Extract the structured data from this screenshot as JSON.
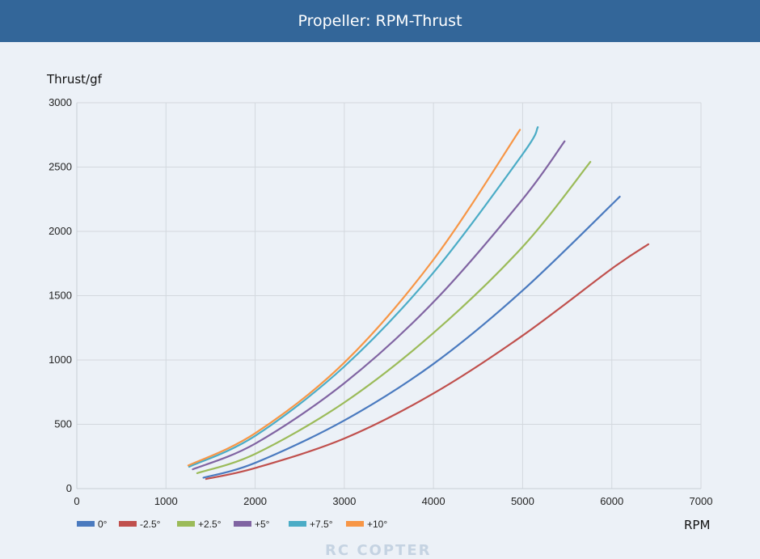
{
  "header": {
    "title": "Propeller: RPM-Thrust"
  },
  "watermark": "RC COPTER",
  "chart_data": {
    "type": "line",
    "title": "Propeller: RPM-Thrust",
    "xlabel": "RPM",
    "ylabel": "Thrust/gf",
    "xlim": [
      0,
      7000
    ],
    "ylim": [
      0,
      3000
    ],
    "xticks": [
      0,
      1000,
      2000,
      3000,
      4000,
      5000,
      6000,
      7000
    ],
    "yticks": [
      0,
      500,
      1000,
      1500,
      2000,
      2500,
      3000
    ],
    "grid": true,
    "legend_position": "bottom-left",
    "series": [
      {
        "name": "0°",
        "color": "#4a7abf",
        "x": [
          1420,
          2000,
          3000,
          4000,
          5000,
          6090
        ],
        "y": [
          85,
          200,
          530,
          970,
          1540,
          2270
        ]
      },
      {
        "name": "-2.5°",
        "color": "#c0504d",
        "x": [
          1450,
          2000,
          3000,
          4000,
          5000,
          6000,
          6410
        ],
        "y": [
          75,
          160,
          390,
          740,
          1190,
          1710,
          1900
        ]
      },
      {
        "name": "+2.5°",
        "color": "#9bbb59",
        "x": [
          1350,
          2000,
          3000,
          4000,
          5000,
          5760
        ],
        "y": [
          120,
          270,
          670,
          1210,
          1880,
          2540
        ]
      },
      {
        "name": "+5°",
        "color": "#8064a2",
        "x": [
          1300,
          2000,
          3000,
          4000,
          5000,
          5470
        ],
        "y": [
          150,
          350,
          820,
          1450,
          2250,
          2700
        ]
      },
      {
        "name": "+7.5°",
        "color": "#4bacc6",
        "x": [
          1260,
          2000,
          3000,
          4000,
          5000,
          5170
        ],
        "y": [
          170,
          410,
          950,
          1680,
          2600,
          2810
        ]
      },
      {
        "name": "+10°",
        "color": "#f79646",
        "x": [
          1250,
          2000,
          3000,
          4000,
          4970
        ],
        "y": [
          180,
          430,
          980,
          1780,
          2790
        ]
      }
    ]
  }
}
